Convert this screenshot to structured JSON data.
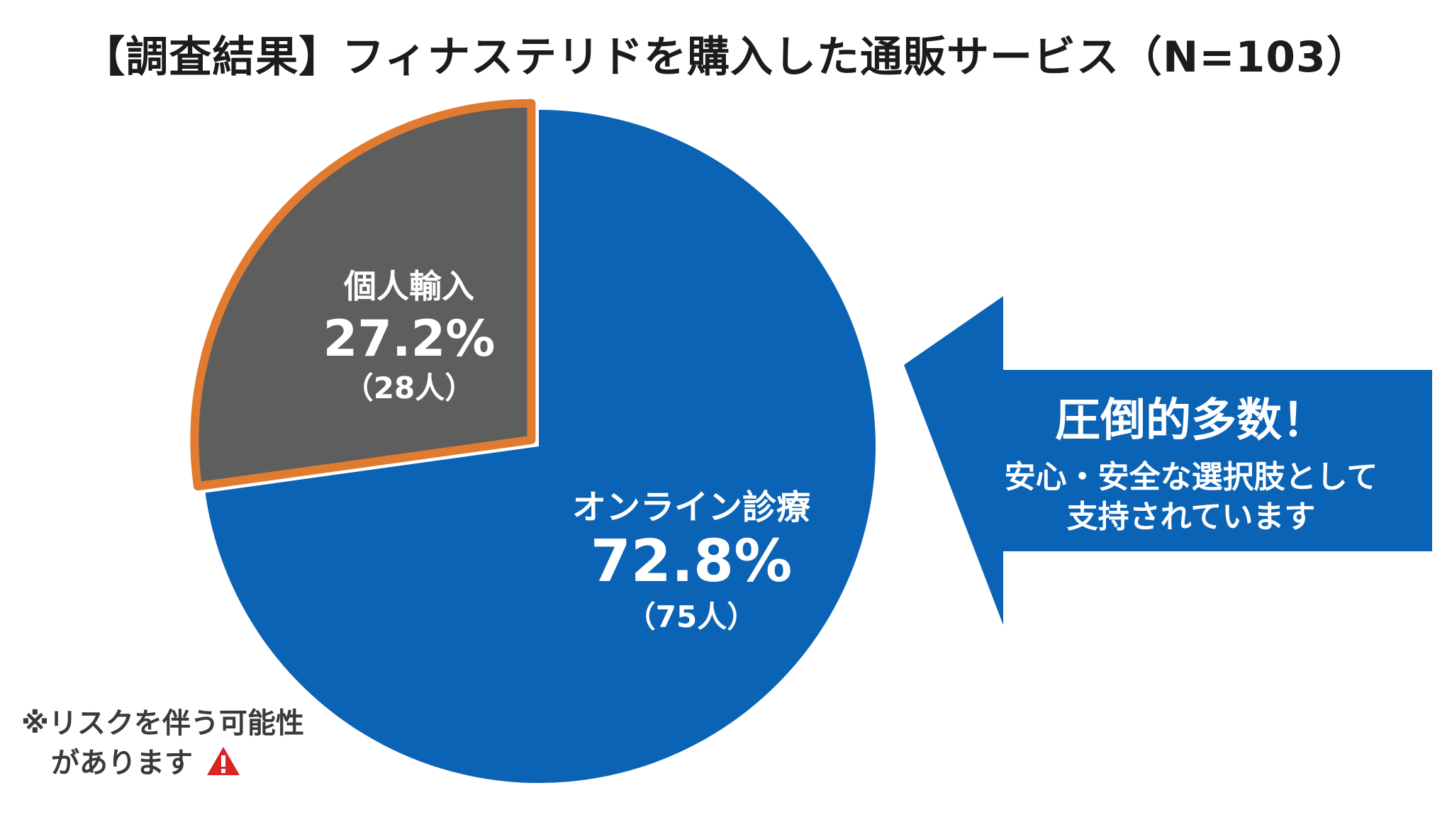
{
  "title": "【調査結果】フィナステリドを購入した通販サービス（N=103）",
  "chart_data": {
    "type": "pie",
    "title": "【調査結果】フィナステリドを購入した通販サービス（N=103）",
    "n": 103,
    "slices": [
      {
        "label": "オンライン診療",
        "percent_label": "72.8%",
        "count_label": "（75人）",
        "value": 72.8,
        "count": 75,
        "color": "#0b63b5"
      },
      {
        "label": "個人輸入",
        "percent_label": "27.2%",
        "count_label": "（28人）",
        "value": 27.2,
        "count": 28,
        "color": "#5e5e5e",
        "outline_color": "#e07b30"
      }
    ]
  },
  "callout": {
    "headline": "圧倒的多数！",
    "line1": "安心・安全な選択肢として",
    "line2": "支持されています",
    "color": "#0b63b5"
  },
  "note": {
    "line1": "※リスクを伴う可能性",
    "line2": "があります",
    "icon": "warning-icon",
    "icon_color": "#d62626"
  }
}
